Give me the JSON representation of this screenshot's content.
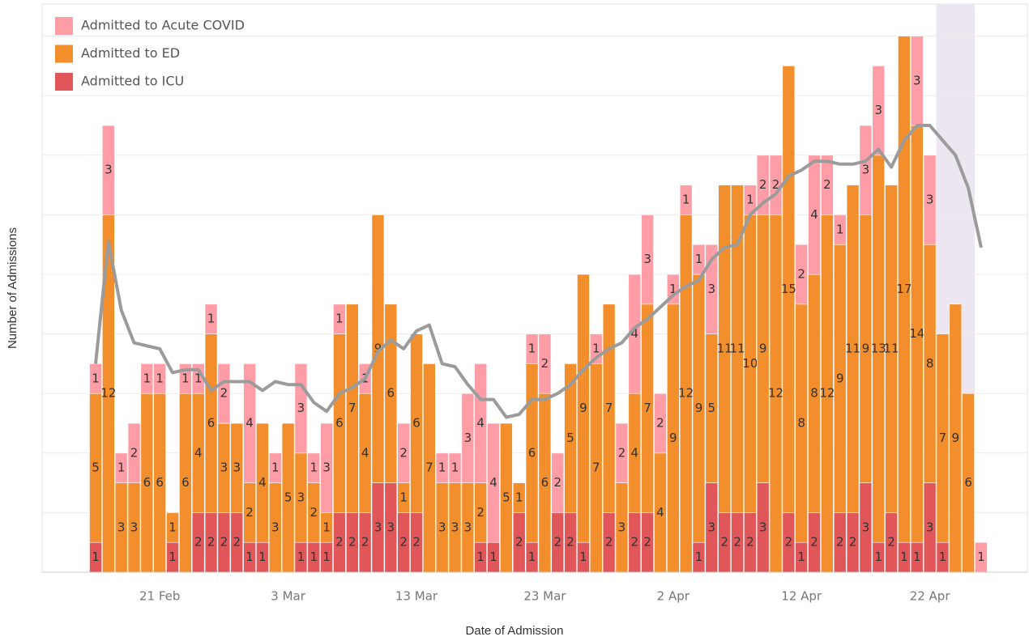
{
  "chart_data": {
    "type": "stacked_bar_line",
    "x_label": "Date of Admission",
    "y_label": "Number of Admissions",
    "categories": [
      null,
      null,
      null,
      null,
      null,
      "21 Feb",
      null,
      null,
      null,
      null,
      null,
      null,
      null,
      null,
      null,
      "3 Mar",
      null,
      null,
      null,
      null,
      null,
      null,
      null,
      null,
      null,
      "13 Mar",
      null,
      null,
      null,
      null,
      null,
      null,
      null,
      null,
      null,
      "23 Mar",
      null,
      null,
      null,
      null,
      null,
      null,
      null,
      null,
      null,
      "2 Apr",
      null,
      null,
      null,
      null,
      null,
      null,
      null,
      null,
      null,
      "12 Apr",
      null,
      null,
      null,
      null,
      null,
      null,
      null,
      null,
      null,
      "22 Apr",
      null,
      null,
      null,
      null
    ],
    "series": [
      {
        "name": "Admitted to Acute COVID",
        "color": "#ff9da7",
        "values": [
          1,
          3,
          1,
          2,
          1,
          1,
          0,
          1,
          1,
          1,
          2,
          0,
          4,
          0,
          1,
          0,
          3,
          1,
          3,
          1,
          0,
          1,
          0,
          0,
          2,
          0,
          0,
          1,
          1,
          3,
          4,
          4,
          0,
          0,
          1,
          2,
          2,
          0,
          0,
          1,
          0,
          2,
          4,
          3,
          2,
          1,
          1,
          1,
          3,
          0,
          0,
          1,
          2,
          2,
          0,
          2,
          4,
          2,
          1,
          0,
          3,
          3,
          0,
          0,
          3,
          3,
          0,
          0,
          0,
          1
        ]
      },
      {
        "name": "Admitted to ED",
        "color": "#f28e2b",
        "values": [
          5,
          12,
          3,
          3,
          6,
          6,
          1,
          6,
          4,
          6,
          3,
          3,
          2,
          4,
          3,
          5,
          3,
          2,
          1,
          6,
          7,
          4,
          9,
          6,
          1,
          6,
          7,
          3,
          3,
          3,
          2,
          0,
          5,
          1,
          6,
          6,
          0,
          5,
          9,
          7,
          7,
          3,
          4,
          7,
          4,
          9,
          12,
          9,
          5,
          11,
          11,
          10,
          9,
          12,
          15,
          8,
          8,
          12,
          9,
          11,
          9,
          13,
          11,
          17,
          14,
          8,
          7,
          9,
          6,
          0
        ]
      },
      {
        "name": "Admitted to ICU",
        "color": "#e15759",
        "values": [
          1,
          0,
          0,
          0,
          0,
          0,
          1,
          0,
          2,
          2,
          2,
          2,
          1,
          1,
          0,
          0,
          1,
          1,
          1,
          2,
          2,
          2,
          3,
          3,
          2,
          2,
          0,
          0,
          0,
          0,
          1,
          1,
          0,
          2,
          1,
          0,
          2,
          2,
          1,
          0,
          2,
          0,
          2,
          2,
          0,
          0,
          0,
          1,
          3,
          2,
          2,
          2,
          3,
          0,
          2,
          1,
          2,
          0,
          2,
          2,
          3,
          1,
          2,
          1,
          1,
          3,
          1,
          0,
          0,
          0
        ]
      }
    ],
    "trend": {
      "color": "#9b9b9b",
      "values": [
        7.0,
        11.1,
        8.8,
        7.7,
        7.6,
        7.5,
        6.7,
        6.8,
        6.8,
        6.1,
        6.4,
        6.4,
        6.4,
        6.1,
        6.4,
        6.3,
        6.3,
        5.7,
        5.4,
        6.0,
        6.2,
        6.5,
        7.4,
        7.8,
        7.5,
        8.1,
        8.3,
        7.0,
        6.9,
        6.3,
        5.8,
        5.8,
        5.2,
        5.3,
        5.8,
        5.8,
        6.0,
        6.3,
        6.8,
        7.2,
        7.5,
        7.7,
        8.2,
        8.5,
        8.9,
        9.3,
        9.6,
        9.8,
        10.5,
        10.9,
        11.0,
        12.0,
        12.4,
        12.7,
        13.3,
        13.5,
        13.8,
        13.8,
        13.7,
        13.7,
        13.8,
        14.2,
        13.6,
        14.5,
        15.0,
        15.0,
        14.5,
        14.0,
        12.9,
        10.9
      ]
    },
    "shade": {
      "from": 66,
      "to": 68,
      "color": "#ece6f0"
    },
    "ylim": [
      0,
      18
    ],
    "yticks": [
      0,
      2,
      4,
      6,
      8,
      10,
      12,
      14,
      16,
      18
    ],
    "grid": true
  }
}
